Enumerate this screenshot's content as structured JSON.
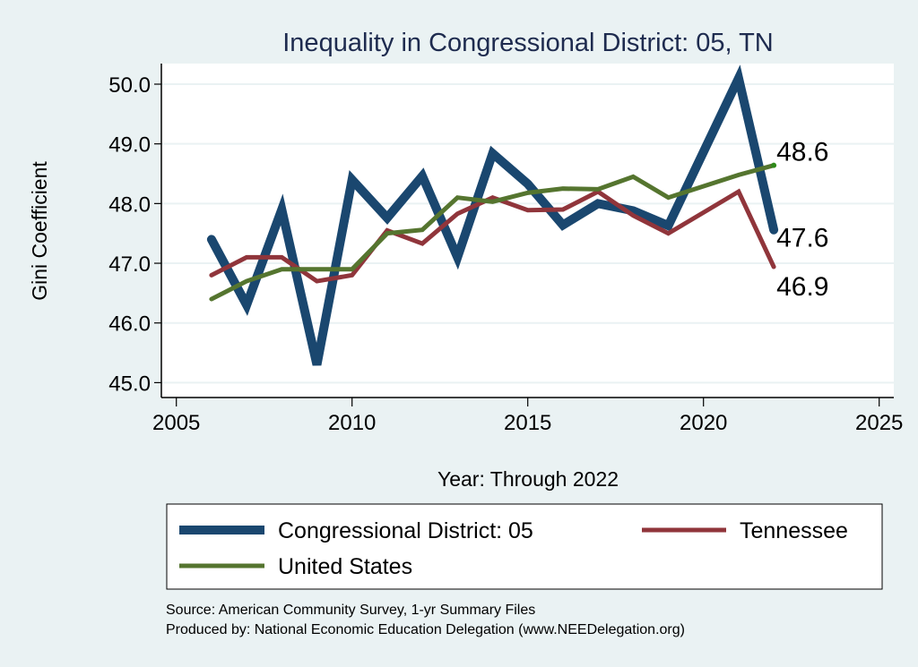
{
  "chart_data": {
    "type": "line",
    "title": "Inequality in Congressional District:  05, TN",
    "xlabel": "Year: Through 2022",
    "ylabel": "Gini Coefficient",
    "xlim": [
      2005,
      2025
    ],
    "ylim": [
      45.0,
      50.0
    ],
    "xticks": [
      2005,
      2010,
      2015,
      2020,
      2025
    ],
    "yticks": [
      "45.0",
      "46.0",
      "47.0",
      "48.0",
      "49.0",
      "50.0"
    ],
    "grid": true,
    "legend_position": "bottom",
    "x": [
      2006,
      2007,
      2008,
      2009,
      2010,
      2011,
      2012,
      2013,
      2014,
      2015,
      2016,
      2017,
      2018,
      2019,
      2021,
      2022
    ],
    "series": [
      {
        "name": "Congressional District:  05",
        "color": "#1a476f",
        "values": [
          47.4,
          46.3,
          47.9,
          45.3,
          48.4,
          47.76,
          48.46,
          47.1,
          48.84,
          48.33,
          47.64,
          48.0,
          47.88,
          47.63,
          50.1,
          47.56
        ],
        "end_label": "47.6"
      },
      {
        "name": "Tennessee",
        "color": "#90353b",
        "values": [
          46.8,
          47.1,
          47.1,
          46.7,
          46.8,
          47.55,
          47.33,
          47.83,
          48.1,
          47.89,
          47.9,
          48.2,
          47.8,
          47.5,
          48.2,
          46.94
        ],
        "end_label": "46.9"
      },
      {
        "name": "United States",
        "color": "#55752f",
        "values": [
          46.4,
          46.7,
          46.9,
          46.9,
          46.9,
          47.5,
          47.56,
          48.1,
          48.03,
          48.18,
          48.25,
          48.24,
          48.45,
          48.1,
          48.48,
          48.64
        ],
        "end_label": "48.6"
      }
    ],
    "notes": [
      "Source: American Community Survey, 1-yr Summary Files",
      "Produced by: National Economic Education Delegation (www.NEEDelegation.org)"
    ]
  },
  "colors": {
    "background": "#eaf2f3",
    "plot_background": "#ffffff",
    "gridline": "#eaf2f3",
    "title": "#1e2b4f"
  }
}
